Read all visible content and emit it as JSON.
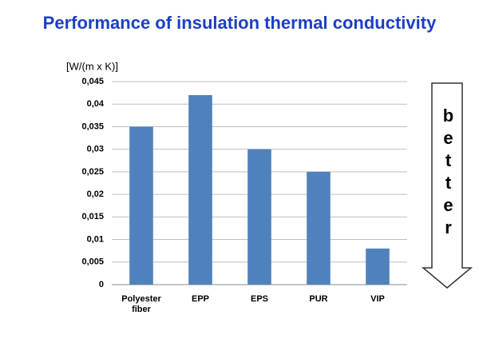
{
  "chart_data": {
    "type": "bar",
    "title": "Performance of insulation thermal conductivity",
    "y_label": "[W/(m x K)]",
    "annotation": "better",
    "categories": [
      "Polyester fiber",
      "EPP",
      "EPS",
      "PUR",
      "VIP"
    ],
    "values": [
      0.035,
      0.042,
      0.03,
      0.025,
      0.008
    ],
    "color": "#4f81bd",
    "ylim": [
      0,
      0.045
    ],
    "yticks": [
      0,
      {
        "value": 0.005,
        "label": "0,005"
      },
      {
        "value": 0.01,
        "label": "0,01"
      },
      {
        "value": 0.015,
        "label": "0,015"
      },
      {
        "value": 0.02,
        "label": "0,02"
      },
      {
        "value": 0.025,
        "label": "0,025"
      },
      {
        "value": 0.03,
        "label": "0,03"
      },
      {
        "value": 0.035,
        "label": "0,035"
      },
      {
        "value": 0.04,
        "label": "0,04"
      },
      {
        "value": 0.045,
        "label": "0,045"
      }
    ],
    "grid": true
  }
}
